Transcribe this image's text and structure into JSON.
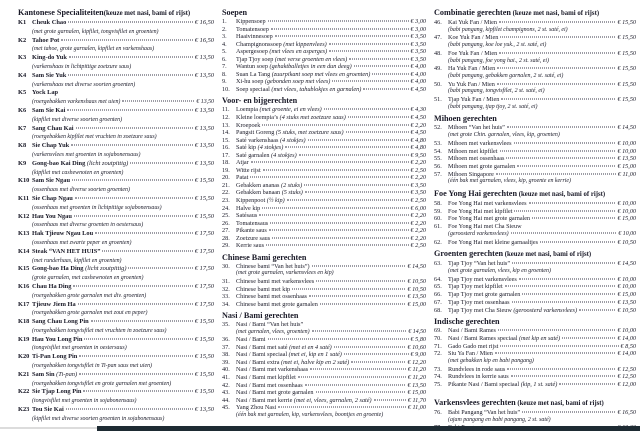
{
  "page": {
    "background": "#ffffff",
    "text_color": "#191927",
    "bottom_bar_dark_color": "#1e2b33",
    "bottom_bar_light_color": "#dcdcdc"
  },
  "columns": [
    {
      "sections": [
        {
          "title": "Kantonese Specialiteiten",
          "note": "(keuze met nasi, bami of rijst)",
          "attached_note": true,
          "items": [
            {
              "num": "K1",
              "name": "Cheuk Chao",
              "price": "€ 16,50",
              "desc": "(met grote garnalen, kipfilet, tongvisfilet en groenten)"
            },
            {
              "num": "K2",
              "name": "Tahoe Pot",
              "price": "€ 16,50",
              "desc": "(met tahoe, grote garnalen, kipfilet en varkenshaas)"
            },
            {
              "num": "K3",
              "name": "King-do Yuk",
              "price": "€ 13,50",
              "desc": "(varkenshaas in lichtpittige zoetzure saus)"
            },
            {
              "num": "K4",
              "name": "Sam Sie Yuk",
              "price": "€ 13,50",
              "desc": "(varkenshaas met diverse soorten groenten)"
            },
            {
              "num": "K5",
              "name": "Yock Lap",
              "price": "€ 13,50",
              "price_on_desc": true,
              "desc": "(roergebakken varkenshaas met uien)"
            },
            {
              "num": "K6",
              "name": "Sam Sie Kai",
              "price": "€ 13,50",
              "desc": "(kipfilet met diverse soorten groenten)"
            },
            {
              "num": "K7",
              "name": "Sang Chau Kai",
              "price": "€ 13,50",
              "desc": "(roergebakken kipfilet met vruchten in zoetzure saus)"
            },
            {
              "num": "K8",
              "name": "Sie Chap Yuk",
              "price": "€ 13,50",
              "desc": "(varkensvlees met groenten in sojabonensaus)"
            },
            {
              "num": "K9",
              "name": "Gong-bao Kai Ding",
              "note": "(licht zoutpittig)",
              "price": "€ 13,50",
              "desc": "(kipfilet met cashewnoten en groenten)"
            },
            {
              "num": "K10",
              "name": "Sam Sie Ngau",
              "price": "€ 15,50",
              "desc": "(ossenhaas met diverse soorten groenten)"
            },
            {
              "num": "K11",
              "name": "Sie Chap Ngau",
              "price": "€ 15,50",
              "desc": "(ossenhaas met groenten in lichtpittige sojabonensaus)"
            },
            {
              "num": "K12",
              "name": "Hau You Ngau",
              "price": "€ 15,50",
              "desc": "(ossenhaas met diverse groenten in oestersaus)"
            },
            {
              "num": "K13",
              "name": "Hak Tjieuw Ngau Lou",
              "price": "€ 17,50",
              "desc": "(ossenhaas met zwarte peper en groenten)"
            },
            {
              "num": "K14",
              "name": "Steak “VAN HET HUIS”",
              "price": "€ 17,50",
              "desc": "(met runderhaas, kipfilet en groenten)"
            },
            {
              "num": "K15",
              "name": "Gong-bao Ha Ding",
              "note": "(licht zoutpittig)",
              "price": "€ 17,50",
              "desc": "(grote garnalen, met cashewnoten en groenten)"
            },
            {
              "num": "K16",
              "name": "Chau Ha Ding",
              "price": "€ 17,50",
              "desc": "(roergebakken grote garnalen met div. groenten)"
            },
            {
              "num": "K17",
              "name": "Tjieuw Jiem Ha",
              "price": "€ 17,50",
              "desc": "(roergebakken grote garnalen met zout en peper)"
            },
            {
              "num": "K18",
              "name": "Sang Chau Long Pin",
              "price": "€ 15,50",
              "desc": "(roergebakken tongvisfilet met vruchten in zoetzure saus)"
            },
            {
              "num": "K19",
              "name": "Hau You Long Pin",
              "price": "€ 15,50",
              "desc": "(tongvisfilet met groenten in oestersaus)"
            },
            {
              "num": "K20",
              "name": "Ti-Pan Long Pin",
              "price": "€ 15,50",
              "desc": "(roergebakken tongvisfilet in Ti-pan saus met uien)"
            },
            {
              "num": "K21",
              "name": "Sam Sin",
              "note": "(Ti-pan)",
              "price": "€ 15,50",
              "desc": "(roergebakken tongvisfilet en grote garnalen met groenten)"
            },
            {
              "num": "K22",
              "name": "Sie Tjap Long Pin",
              "price": "€ 15,50",
              "desc": "(tongvisfilet met groenten in sojabonensaus)"
            },
            {
              "num": "K23",
              "name": "Tou Sie Kai",
              "price": "€ 13,50",
              "desc": "(kipfilet met diverse soorten groenten in sojabonensaus)"
            }
          ]
        }
      ]
    },
    {
      "sections": [
        {
          "title": "Soepen",
          "items": [
            {
              "num": "1.",
              "name": "Kippensoep",
              "price": "€ 3,00"
            },
            {
              "num": "2.",
              "name": "Tomatensoep",
              "price": "€ 3,00"
            },
            {
              "num": "3.",
              "name": "Haaivinnesoep",
              "price": "€ 3,50"
            },
            {
              "num": "4.",
              "name": "Champignonssoep",
              "note": "(met kippenvlees)",
              "price": "€ 3,50"
            },
            {
              "num": "5.",
              "name": "Aspergesoep",
              "note": "(met vlees en asperges)",
              "price": "€ 3,50"
            },
            {
              "num": "6.",
              "name": "Tjap Tjoy soep",
              "note": "(met verse groenten en vlees)",
              "price": "€ 3,50"
            },
            {
              "num": "7.",
              "name": "Wantun soep",
              "note": "(gehaktballetjes in een dun deeg)",
              "price": "€ 4,00"
            },
            {
              "num": "8.",
              "name": "Suan La Tang",
              "note": "(zuurpikant soep met vlees en groenten)",
              "price": "€ 4,00"
            },
            {
              "num": "9.",
              "name": "Xi-hu soep",
              "note": "(gebonden soep met vlees)",
              "price": "€ 4,00"
            },
            {
              "num": "10.",
              "name": "Soep speciaal",
              "note": "(met vlees, tahublokjes en garnalen)",
              "price": "€ 4,50"
            }
          ]
        },
        {
          "title": "Voor- en bijgerechten",
          "items": [
            {
              "num": "11.",
              "name": "Loempia",
              "note": "(met groente, ei en vlees)",
              "price": "€ 4,30"
            },
            {
              "num": "12.",
              "name": "Kleine loempia’s",
              "note": "(4 stuks met zoetzure saus)",
              "price": "€ 4,50"
            },
            {
              "num": "13.",
              "name": "Kroepoek",
              "price": "€ 2,20"
            },
            {
              "num": "14.",
              "name": "Pangsit Goreng",
              "note": "(5 stuks, met zoetzure saus)",
              "price": "€ 4,50"
            },
            {
              "num": "15.",
              "name": "Saté varkenshaas",
              "note": "(4 stokjes)",
              "price": "€ 4,80"
            },
            {
              "num": "16.",
              "name": "Saté kip",
              "note": "(4 stokjes)",
              "price": "€ 4,80"
            },
            {
              "num": "17.",
              "name": "Saté garnalen",
              "note": "(4 stokjes)",
              "price": "€ 9,50"
            },
            {
              "num": "18.",
              "name": "Atjar",
              "price": "€ 2,20"
            },
            {
              "num": "19.",
              "name": "Witte rijst",
              "price": "€ 2,50"
            },
            {
              "num": "20.",
              "name": "Patat",
              "price": "€ 2,20"
            },
            {
              "num": "21.",
              "name": "Gebakken ananas",
              "note": "(2 stuks)",
              "price": "€ 3,50"
            },
            {
              "num": "22.",
              "name": "Gebakken banaan",
              "note": "(5 stuks)",
              "price": "€ 3,50"
            },
            {
              "num": "23.",
              "name": "Kippenpoot",
              "note": "(½ kip)",
              "price": "€ 2,50"
            },
            {
              "num": "24.",
              "name": "Halve kip",
              "price": "€ 6,00"
            },
            {
              "num": "25.",
              "name": "Satésaus",
              "price": "€ 2,20"
            },
            {
              "num": "26.",
              "name": "Tomatensaus",
              "price": "€ 2,20"
            },
            {
              "num": "27.",
              "name": "Pikante saus",
              "price": "€ 2,20"
            },
            {
              "num": "28.",
              "name": "Zoetzure saus",
              "price": "€ 2,20"
            },
            {
              "num": "29.",
              "name": "Kerrie saus",
              "price": "€ 2,50"
            }
          ]
        },
        {
          "title": "Chinese Bami gerechten",
          "items": [
            {
              "num": "30.",
              "name": "Chinese bami “Van het huis”)",
              "price": "€ 14,50",
              "desc": "(met grote garnalen, varkensvlees en kip)"
            },
            {
              "num": "31.",
              "name": "Chinese bami met varkensvlees",
              "price": "€ 10,50"
            },
            {
              "num": "32.",
              "name": "Chinese bami met kip",
              "price": "€ 10,50"
            },
            {
              "num": "33.",
              "name": "Chinese bami met ossenhaas",
              "price": "€ 13,50"
            },
            {
              "num": "34.",
              "name": "Chinese bami met grote garnalen",
              "price": "€ 15,00"
            }
          ]
        },
        {
          "title": "Nasi / Bami gerechten",
          "items": [
            {
              "num": "35.",
              "name": "Nasi / Bami “Van het huis”",
              "price": "€ 14,50",
              "price_on_desc": true,
              "desc": "(met garnalen, vlees, groenten)"
            },
            {
              "num": "36.",
              "name": "Nasi / Bami",
              "price": "€ 5,80"
            },
            {
              "num": "37.",
              "name": "Nasi / Bami met saté",
              "note": "(met ei en 4 saté)",
              "price": "€ 10,60"
            },
            {
              "num": "38.",
              "name": "Nasi / Bami speciaal",
              "note": "(met ei, kip en 1 saté)",
              "price": "€ 9,00"
            },
            {
              "num": "39.",
              "name": "Nasi / Bami extra",
              "note": "(met ei, halve kip en 2 saté)",
              "price": "€ 12,20"
            },
            {
              "num": "40.",
              "name": "Nasi / Bami met varkenshaas",
              "price": "€ 11,20"
            },
            {
              "num": "41.",
              "name": "Nasi / Bami met kipfilet",
              "price": "€ 11,20"
            },
            {
              "num": "42.",
              "name": "Nasi / Bami met ossenhaas",
              "price": "€ 13,50"
            },
            {
              "num": "43.",
              "name": "Nasi / Bami met grote garnalen",
              "price": "€ 15,00"
            },
            {
              "num": "44.",
              "name": "Nasi / Bami met kerrie",
              "note": "(met ei, vlees, garnalen, 2 saté)",
              "price": "€ 11,70"
            },
            {
              "num": "45.",
              "name": "Yang Zhou Nasi",
              "price": "€ 11,00",
              "desc": "(één bak met garnalen, kip, varkensvlees, boontjes en groente)"
            }
          ]
        }
      ]
    },
    {
      "sections": [
        {
          "title": "Combinatie gerechten",
          "note": "(keuze met nasi, bami of rijst)",
          "items": [
            {
              "num": "46.",
              "name": "Kai Yuk Fan / Mien",
              "price": "€ 15,50",
              "desc": "(babi pangang, kipfilet champignons, 2 st. saté, ei)"
            },
            {
              "num": "47.",
              "name": "Koe Yuk Fan / Mien",
              "price": "€ 15,50",
              "desc": "(babi pangang, koe loe yuk., 2 st. saté, ei)"
            },
            {
              "num": "48.",
              "name": "Foe Yuk Fan / Mien",
              "price": "€ 15,50",
              "desc": "(babi pangang, foe yong hai., 2 st. saté, ei)"
            },
            {
              "num": "49.",
              "name": "Ha Yuk Fan / Mien",
              "price": "€ 15,50",
              "desc": "(babi pangang, gebakken garnalen, 2 st. saté, ei)"
            },
            {
              "num": "50.",
              "name": "Yu Yuk Fan / Mien",
              "price": "€ 15,50",
              "desc": "(babi pangang, tongvisfilet, 2 st. saté, ei)"
            },
            {
              "num": "51.",
              "name": "Tjap Yuk Fan / Mien",
              "price": "€ 15,50",
              "desc": "(babi pangang, tjap tjoy, 2 st. saté, ei)"
            }
          ]
        },
        {
          "title": "Mihoen gerechten",
          "items": [
            {
              "num": "52.",
              "name": "Mihoen “Van het huis”",
              "price": "€ 14,50",
              "desc": "(met grote Chin. garnalen, vlees, kip, groenten)"
            },
            {
              "num": "53.",
              "name": "Mihoen met varkensvlees",
              "price": "€ 10,00"
            },
            {
              "num": "54.",
              "name": "Mihoen met kipfilet",
              "price": "€ 10,00"
            },
            {
              "num": "55.",
              "name": "Mihoen met ossenhaas",
              "price": "€ 13,50"
            },
            {
              "num": "56.",
              "name": "Mihoen met grote garnalen",
              "price": "€ 15,00"
            },
            {
              "num": "57.",
              "name": "Mihoen Singapore",
              "price": "€ 11,00",
              "desc": "(één bak met garnalen, vlees, kip, groente en kerrie)"
            }
          ]
        },
        {
          "title": "Foe Yong Hai gerechten",
          "note": "(keuze met nasi, bami of rijst)",
          "items": [
            {
              "num": "58.",
              "name": "Foe Yong Hai met varkensvlees",
              "price": "€ 10,00"
            },
            {
              "num": "59.",
              "name": "Foe Yong Hai met kipfilet",
              "price": "€ 10,00"
            },
            {
              "num": "60.",
              "name": "Foe Yong Hai met grote garnalen",
              "price": "€ 15,00"
            },
            {
              "num": "61.",
              "name": "Foe Yong Hai met Cha Sieuw",
              "price": "€ 10,00",
              "price_on_desc": true,
              "desc": "(geroosterd varkensvlees)"
            },
            {
              "num": "62.",
              "name": "Foe Yong Hai met kleine garnaaltjes",
              "price": "€ 10,50"
            }
          ]
        },
        {
          "title": "Groenten gerechten",
          "note": "(keuze met nasi, bami of rijst)",
          "items": [
            {
              "num": "63.",
              "name": "Tjap Tjoy “Van het huis”",
              "price": "€ 14,50",
              "desc": "(met grote garnalen, vlees, kip en groenten)"
            },
            {
              "num": "64.",
              "name": "Tjap Tjoy met varkensvlees",
              "price": "€ 10,00"
            },
            {
              "num": "65.",
              "name": "Tjap Tjoy met kipfilet",
              "price": "€ 10,00"
            },
            {
              "num": "66.",
              "name": "Tjap Tjoy met grote garnalen",
              "price": "€ 15,00"
            },
            {
              "num": "67.",
              "name": "Tjap Tjoy met ossenhaas",
              "price": "€ 13,50"
            },
            {
              "num": "68.",
              "name": "Tjap Tjoy met Cha Sieuw",
              "note": "(geroosterd varkensvlees)",
              "price": "€ 10,50"
            }
          ]
        },
        {
          "title": "Indische gerechten",
          "items": [
            {
              "num": "69.",
              "name": "Nasi / Bami Rames",
              "price": "€ 10,00"
            },
            {
              "num": "70.",
              "name": "Nasi / Bami Rames speciaal",
              "note": "(met kip en saté)",
              "price": "€ 14,00"
            },
            {
              "num": "71.",
              "name": "Gado Gado met rijst",
              "price": "€ 8,50"
            },
            {
              "num": "72.",
              "name": "Siu Ya Fan / Mien",
              "price": "€ 14,00",
              "desc": "(met gebakken kip en babi pangang)"
            },
            {
              "num": "73.",
              "name": "Rundvlees in rode saus",
              "price": "€ 12,50"
            },
            {
              "num": "74.",
              "name": "Rundvlees in kerrie saus",
              "price": "€ 12,50"
            },
            {
              "num": "75.",
              "name": "Pikante Nasi / Bami speciaal",
              "note": "(kip, 1 st. saté)",
              "price": "€ 12,00"
            }
          ]
        },
        {
          "title": "Varkensvlees gerechten",
          "note": "(keuze met nasi, bami of rijst)",
          "extra_gap": true,
          "items": [
            {
              "num": "76.",
              "name": "Babi Pangang “Van het huis”",
              "price": "€ 16,50",
              "desc": "(ajam pangang en babi pangang, 2 st. saté)"
            },
            {
              "num": "77.",
              "name": "Babi Pangang",
              "price": "€ 13,00"
            },
            {
              "num": "78.",
              "name": "Babi Pangang",
              "note": "Klein",
              "price": "€ 10,00"
            },
            {
              "num": "79.",
              "name": "Chinese Babi Pangang",
              "note": "(geroosterde spek met saus)",
              "price": "€ 14,00"
            }
          ]
        }
      ]
    }
  ]
}
